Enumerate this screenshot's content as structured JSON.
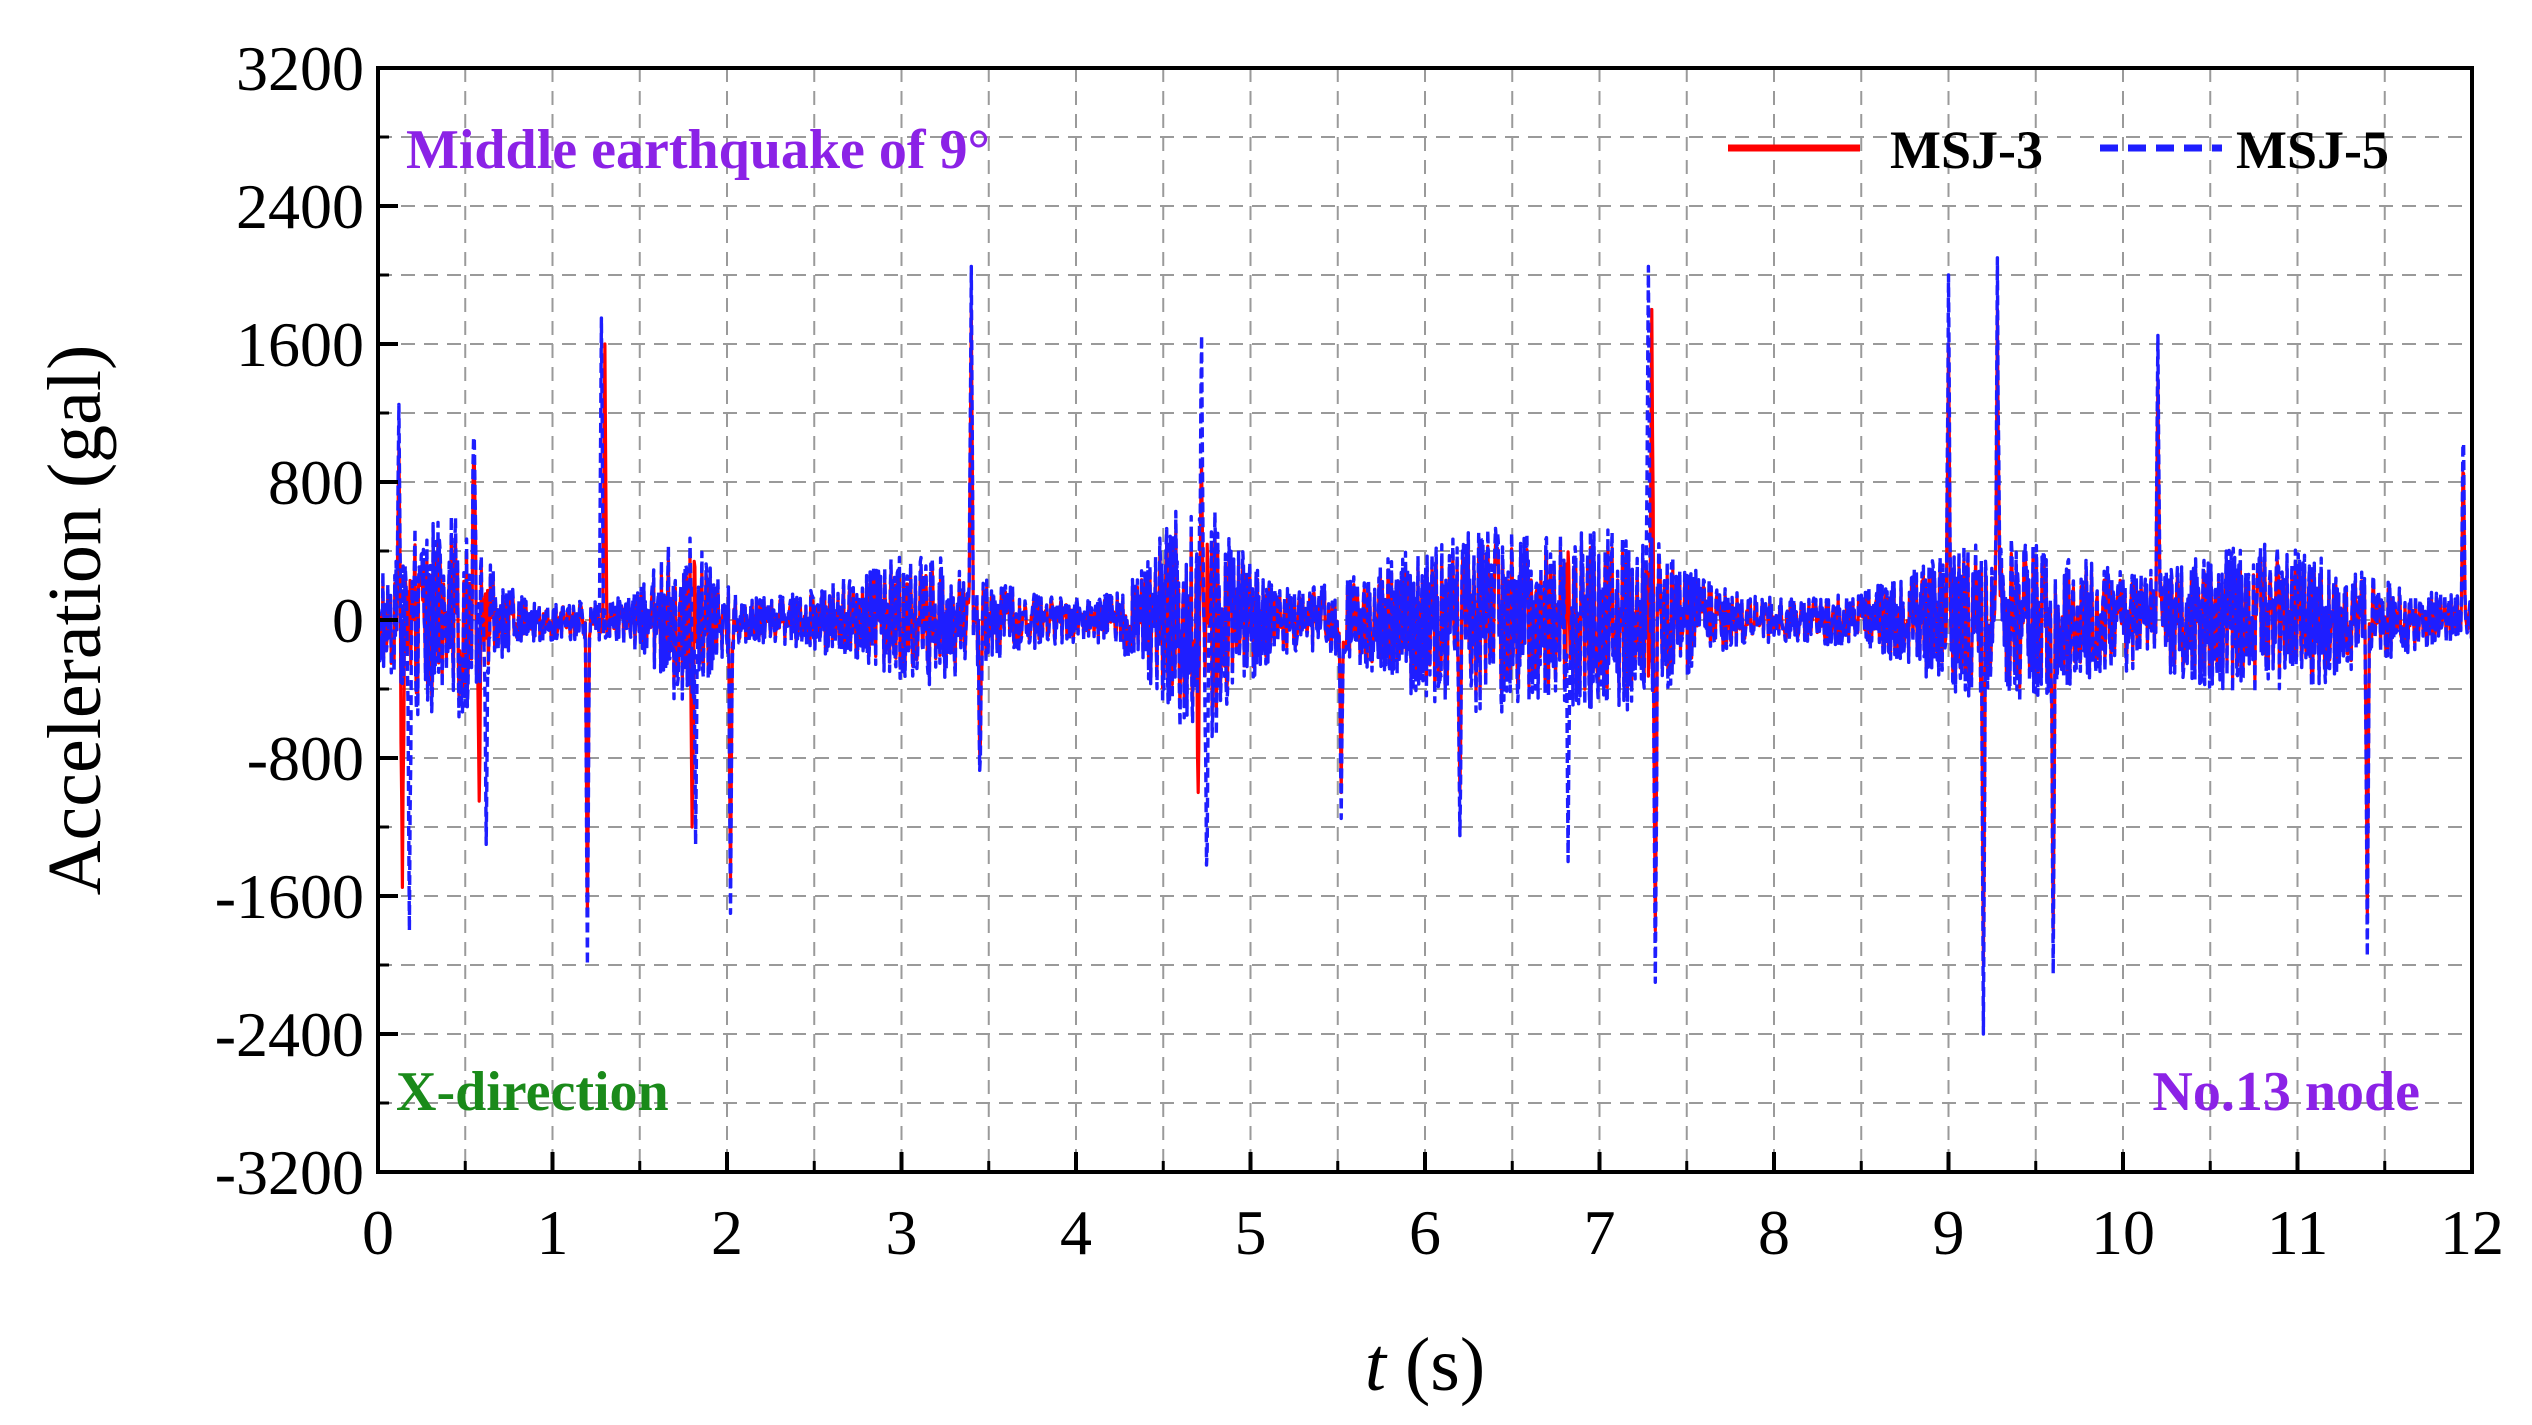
{
  "chart_data": {
    "type": "line",
    "xlabel_var": "t",
    "xlabel_unit": " (s)",
    "ylabel": "Acceleration (gal)",
    "xlim": [
      0,
      12
    ],
    "ylim": [
      -3200,
      3200
    ],
    "xticks": [
      "0",
      "1",
      "2",
      "3",
      "4",
      "5",
      "6",
      "7",
      "8",
      "9",
      "10",
      "11",
      "12"
    ],
    "yticks": [
      "3200",
      "2400",
      "1600",
      "800",
      "0",
      "-800",
      "-1600",
      "-2400",
      "-3200"
    ],
    "grid": true,
    "legend_position": "top-right",
    "annotations": {
      "top_left": "Middle earthquake of 9°",
      "bottom_left": "X-direction",
      "bottom_right": "No.13 node"
    },
    "annotation_colors": {
      "top_left": "#8B22E6",
      "bottom_left": "#1A8A1A",
      "bottom_right": "#8B22E6"
    },
    "series": [
      {
        "name": "MSJ-3",
        "color": "#FF0000",
        "style": "solid",
        "peaks": [
          {
            "t": 0.12,
            "v": 1000
          },
          {
            "t": 0.14,
            "v": -1550
          },
          {
            "t": 0.55,
            "v": 1150
          },
          {
            "t": 0.58,
            "v": -1050
          },
          {
            "t": 1.2,
            "v": -1700
          },
          {
            "t": 1.3,
            "v": 1600
          },
          {
            "t": 1.8,
            "v": -1200
          },
          {
            "t": 2.02,
            "v": -1500
          },
          {
            "t": 3.4,
            "v": 1800
          },
          {
            "t": 3.45,
            "v": -900
          },
          {
            "t": 4.72,
            "v": 900
          },
          {
            "t": 4.7,
            "v": -1000
          },
          {
            "t": 5.52,
            "v": -1000
          },
          {
            "t": 6.2,
            "v": -1000
          },
          {
            "t": 7.3,
            "v": 1800
          },
          {
            "t": 7.32,
            "v": -1800
          },
          {
            "t": 9.0,
            "v": 1600
          },
          {
            "t": 9.2,
            "v": -2000
          },
          {
            "t": 9.28,
            "v": 1800
          },
          {
            "t": 9.6,
            "v": -1800
          },
          {
            "t": 10.2,
            "v": 1400
          },
          {
            "t": 11.4,
            "v": -1700
          },
          {
            "t": 11.95,
            "v": 1000
          }
        ]
      },
      {
        "name": "MSJ-5",
        "color": "#1E1EFF",
        "style": "dashed",
        "peaks": [
          {
            "t": 0.12,
            "v": 1250
          },
          {
            "t": 0.18,
            "v": -1800
          },
          {
            "t": 0.55,
            "v": 1300
          },
          {
            "t": 0.62,
            "v": -1300
          },
          {
            "t": 1.2,
            "v": -2000
          },
          {
            "t": 1.28,
            "v": 1750
          },
          {
            "t": 1.82,
            "v": -1300
          },
          {
            "t": 2.02,
            "v": -1700
          },
          {
            "t": 3.4,
            "v": 2050
          },
          {
            "t": 3.45,
            "v": -1000
          },
          {
            "t": 4.72,
            "v": 1650
          },
          {
            "t": 4.75,
            "v": -1700
          },
          {
            "t": 5.52,
            "v": -1150
          },
          {
            "t": 6.2,
            "v": -1250
          },
          {
            "t": 6.82,
            "v": -1400
          },
          {
            "t": 7.28,
            "v": 2050
          },
          {
            "t": 7.32,
            "v": -2100
          },
          {
            "t": 9.0,
            "v": 2000
          },
          {
            "t": 9.2,
            "v": -2400
          },
          {
            "t": 9.28,
            "v": 2100
          },
          {
            "t": 9.6,
            "v": -2050
          },
          {
            "t": 10.2,
            "v": 1650
          },
          {
            "t": 11.4,
            "v": -1950
          },
          {
            "t": 11.95,
            "v": 1200
          }
        ]
      }
    ]
  }
}
